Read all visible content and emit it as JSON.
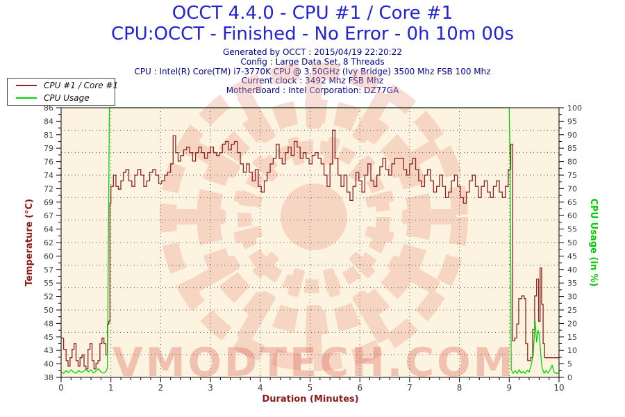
{
  "header": {
    "title": "OCCT 4.4.0 - CPU #1 / Core #1",
    "subtitle": "CPU:OCCT - Finished - No Error - 0h 10m 00s",
    "info_lines": [
      "Generated by OCCT : 2015/04/19 22:20:22",
      "Config : Large Data Set, 8 Threads",
      "CPU : Intel(R) Core(TM) i7-3770K CPU @ 3.50GHz (Ivy Bridge) 3500 Mhz FSB 100 Mhz",
      "Current clock : 3492 Mhz FSB  Mhz",
      "MotherBoard : Intel Corporation: DZ77GA"
    ]
  },
  "legend": {
    "items": [
      {
        "label": "CPU #1 / Core #1",
        "color": "#8f2323"
      },
      {
        "label": "CPU Usage",
        "color": "#00d500"
      }
    ]
  },
  "watermark": {
    "text": "VMODTECH.COM",
    "text_color": "#e2796a",
    "ornament_color": "#eda violet",
    "color": "#eda violet"
  },
  "colors": {
    "title_blue": "#2222d6",
    "info_navy": "#00008b",
    "temperature_line": "#8f2323",
    "usage_line": "#00d500",
    "temp_axis_label": "#8b1a1a",
    "usage_axis_label": "#00cc00",
    "duration_axis_label": "#8b1a1a",
    "plot_background": "#fcf4e1",
    "tick_label": "#3c3c3c",
    "watermark": "#eca08d"
  },
  "chart_data": {
    "type": "line",
    "title": "OCCT 4.4.0 - CPU #1 / Core #1",
    "subtitle": "CPU:OCCT - Finished - No Error - 0h 10m 00s",
    "grid": "dotted",
    "legend_position": "top-left",
    "x_axis": {
      "label": "Duration (Minutes)",
      "min": 0,
      "max": 10,
      "major_step": 1,
      "minor_step": 0.2,
      "tick_labels": [
        "0",
        "1",
        "2",
        "3",
        "4",
        "5",
        "6",
        "7",
        "8",
        "9",
        "10"
      ]
    },
    "y_axis_left": {
      "label": "Temperature (°C)",
      "min": 38,
      "max": 86,
      "tick_labels": [
        "38",
        "40",
        "43",
        "45",
        "48",
        "50",
        "52",
        "55",
        "57",
        "60",
        "62",
        "64",
        "67",
        "69",
        "72",
        "74",
        "76",
        "79",
        "81",
        "84",
        "86"
      ]
    },
    "y_axis_right": {
      "label": "CPU Usage (in %)",
      "min": 0,
      "max": 100,
      "tick_labels": [
        "0",
        "5",
        "10",
        "15",
        "20",
        "25",
        "30",
        "35",
        "40",
        "45",
        "50",
        "55",
        "60",
        "65",
        "70",
        "75",
        "80",
        "85",
        "90",
        "95",
        "100"
      ]
    },
    "series": [
      {
        "name": "CPU #1 / Core #1",
        "axis": "left",
        "color": "#8f2323",
        "style": "step",
        "points": [
          [
            0,
            45
          ],
          [
            0.05,
            43
          ],
          [
            0.1,
            41
          ],
          [
            0.14,
            40
          ],
          [
            0.18,
            41.5
          ],
          [
            0.22,
            43
          ],
          [
            0.26,
            44
          ],
          [
            0.3,
            41
          ],
          [
            0.34,
            40
          ],
          [
            0.38,
            41.5
          ],
          [
            0.42,
            42
          ],
          [
            0.46,
            40
          ],
          [
            0.5,
            39.5
          ],
          [
            0.54,
            43
          ],
          [
            0.58,
            44
          ],
          [
            0.62,
            41
          ],
          [
            0.66,
            39.5
          ],
          [
            0.7,
            40.5
          ],
          [
            0.74,
            41
          ],
          [
            0.78,
            44
          ],
          [
            0.82,
            45
          ],
          [
            0.86,
            44
          ],
          [
            0.9,
            42
          ],
          [
            0.93,
            47.5
          ],
          [
            0.96,
            48
          ],
          [
            0.98,
            69
          ],
          [
            1.0,
            72
          ],
          [
            1.05,
            74
          ],
          [
            1.1,
            72
          ],
          [
            1.15,
            71.5
          ],
          [
            1.2,
            73
          ],
          [
            1.25,
            74.5
          ],
          [
            1.3,
            75
          ],
          [
            1.36,
            73
          ],
          [
            1.42,
            72
          ],
          [
            1.48,
            74
          ],
          [
            1.54,
            75
          ],
          [
            1.6,
            74
          ],
          [
            1.66,
            72
          ],
          [
            1.72,
            73
          ],
          [
            1.78,
            74.5
          ],
          [
            1.84,
            75
          ],
          [
            1.9,
            74
          ],
          [
            1.96,
            72.5
          ],
          [
            2.02,
            73
          ],
          [
            2.08,
            74
          ],
          [
            2.14,
            74.5
          ],
          [
            2.2,
            76
          ],
          [
            2.25,
            81
          ],
          [
            2.3,
            78
          ],
          [
            2.35,
            76.5
          ],
          [
            2.4,
            77.5
          ],
          [
            2.46,
            78.5
          ],
          [
            2.52,
            79
          ],
          [
            2.58,
            78
          ],
          [
            2.64,
            76.5
          ],
          [
            2.7,
            78
          ],
          [
            2.76,
            79
          ],
          [
            2.82,
            78
          ],
          [
            2.88,
            77
          ],
          [
            2.94,
            78
          ],
          [
            3.0,
            79
          ],
          [
            3.06,
            78
          ],
          [
            3.12,
            77.5
          ],
          [
            3.18,
            78
          ],
          [
            3.24,
            79.5
          ],
          [
            3.3,
            80
          ],
          [
            3.36,
            78.5
          ],
          [
            3.42,
            79.5
          ],
          [
            3.48,
            80
          ],
          [
            3.54,
            78
          ],
          [
            3.6,
            76
          ],
          [
            3.66,
            74.5
          ],
          [
            3.72,
            76
          ],
          [
            3.78,
            74.5
          ],
          [
            3.84,
            73
          ],
          [
            3.9,
            75
          ],
          [
            3.96,
            72
          ],
          [
            4.02,
            71
          ],
          [
            4.08,
            73
          ],
          [
            4.14,
            74.5
          ],
          [
            4.2,
            76
          ],
          [
            4.26,
            77
          ],
          [
            4.32,
            79.5
          ],
          [
            4.38,
            77
          ],
          [
            4.44,
            76
          ],
          [
            4.5,
            78
          ],
          [
            4.56,
            79
          ],
          [
            4.62,
            77.5
          ],
          [
            4.68,
            80
          ],
          [
            4.74,
            79
          ],
          [
            4.8,
            77
          ],
          [
            4.86,
            78
          ],
          [
            4.92,
            77
          ],
          [
            4.98,
            76
          ],
          [
            5.04,
            77.5
          ],
          [
            5.1,
            78
          ],
          [
            5.16,
            77
          ],
          [
            5.22,
            76
          ],
          [
            5.28,
            74
          ],
          [
            5.34,
            72
          ],
          [
            5.4,
            76
          ],
          [
            5.45,
            82
          ],
          [
            5.5,
            77
          ],
          [
            5.56,
            74
          ],
          [
            5.62,
            72
          ],
          [
            5.68,
            74
          ],
          [
            5.74,
            71
          ],
          [
            5.8,
            69.5
          ],
          [
            5.86,
            72
          ],
          [
            5.92,
            74.5
          ],
          [
            5.98,
            73
          ],
          [
            6.04,
            71
          ],
          [
            6.1,
            74
          ],
          [
            6.16,
            76
          ],
          [
            6.22,
            73
          ],
          [
            6.28,
            72
          ],
          [
            6.34,
            74
          ],
          [
            6.4,
            75.5
          ],
          [
            6.46,
            77
          ],
          [
            6.52,
            75
          ],
          [
            6.58,
            74
          ],
          [
            6.64,
            76
          ],
          [
            6.7,
            77
          ],
          [
            6.82,
            77
          ],
          [
            6.88,
            75
          ],
          [
            6.94,
            74
          ],
          [
            7.0,
            76
          ],
          [
            7.06,
            77
          ],
          [
            7.12,
            75
          ],
          [
            7.18,
            73
          ],
          [
            7.24,
            72
          ],
          [
            7.3,
            74
          ],
          [
            7.36,
            75
          ],
          [
            7.42,
            73
          ],
          [
            7.48,
            71
          ],
          [
            7.54,
            72
          ],
          [
            7.6,
            74
          ],
          [
            7.66,
            72
          ],
          [
            7.72,
            70
          ],
          [
            7.78,
            71
          ],
          [
            7.84,
            73
          ],
          [
            7.9,
            74
          ],
          [
            7.96,
            72
          ],
          [
            8.02,
            70
          ],
          [
            8.08,
            69
          ],
          [
            8.14,
            71
          ],
          [
            8.2,
            73
          ],
          [
            8.26,
            74
          ],
          [
            8.32,
            72
          ],
          [
            8.38,
            70
          ],
          [
            8.44,
            72
          ],
          [
            8.5,
            73
          ],
          [
            8.56,
            71
          ],
          [
            8.62,
            70
          ],
          [
            8.68,
            72
          ],
          [
            8.74,
            73
          ],
          [
            8.8,
            71
          ],
          [
            8.86,
            70
          ],
          [
            8.92,
            72
          ],
          [
            8.98,
            75
          ],
          [
            9.03,
            79.5
          ],
          [
            9.07,
            44.5
          ],
          [
            9.11,
            45
          ],
          [
            9.15,
            47.5
          ],
          [
            9.19,
            52
          ],
          [
            9.25,
            52.5
          ],
          [
            9.3,
            52
          ],
          [
            9.33,
            44
          ],
          [
            9.37,
            41
          ],
          [
            9.43,
            41.5
          ],
          [
            9.47,
            46.5
          ],
          [
            9.51,
            52.5
          ],
          [
            9.55,
            55.5
          ],
          [
            9.59,
            48
          ],
          [
            9.62,
            57.5
          ],
          [
            9.65,
            51
          ],
          [
            9.68,
            44
          ],
          [
            9.71,
            41.5
          ],
          [
            10,
            41.5
          ]
        ]
      },
      {
        "name": "CPU Usage",
        "axis": "right",
        "color": "#00d500",
        "style": "linear",
        "points": [
          [
            0,
            2
          ],
          [
            0.05,
            1.5
          ],
          [
            0.1,
            2.5
          ],
          [
            0.15,
            1.8
          ],
          [
            0.2,
            2.8
          ],
          [
            0.25,
            2
          ],
          [
            0.3,
            1.5
          ],
          [
            0.35,
            2.6
          ],
          [
            0.4,
            1.8
          ],
          [
            0.45,
            2.2
          ],
          [
            0.5,
            3
          ],
          [
            0.55,
            2
          ],
          [
            0.6,
            2.8
          ],
          [
            0.65,
            1.6
          ],
          [
            0.7,
            2.4
          ],
          [
            0.75,
            3.2
          ],
          [
            0.8,
            2
          ],
          [
            0.85,
            1.6
          ],
          [
            0.9,
            2.2
          ],
          [
            0.93,
            3.5
          ],
          [
            0.95,
            50
          ],
          [
            0.97,
            100
          ],
          [
            9.0,
            100
          ],
          [
            9.02,
            77
          ],
          [
            9.03,
            40
          ],
          [
            9.04,
            3
          ],
          [
            9.08,
            1.5
          ],
          [
            9.12,
            2.5
          ],
          [
            9.16,
            1.5
          ],
          [
            9.2,
            2.8
          ],
          [
            9.24,
            1.6
          ],
          [
            9.28,
            2.2
          ],
          [
            9.32,
            1.5
          ],
          [
            9.36,
            2.6
          ],
          [
            9.4,
            2
          ],
          [
            9.44,
            4.5
          ],
          [
            9.48,
            8
          ],
          [
            9.52,
            21
          ],
          [
            9.55,
            13
          ],
          [
            9.58,
            17.5
          ],
          [
            9.61,
            15
          ],
          [
            9.63,
            9
          ],
          [
            9.66,
            3.5
          ],
          [
            9.7,
            1.5
          ],
          [
            9.74,
            2.5
          ],
          [
            9.78,
            1.6
          ],
          [
            9.82,
            2.8
          ],
          [
            9.86,
            4.5
          ],
          [
            9.9,
            2
          ],
          [
            9.95,
            1.4
          ],
          [
            10,
            1.8
          ]
        ]
      }
    ]
  }
}
